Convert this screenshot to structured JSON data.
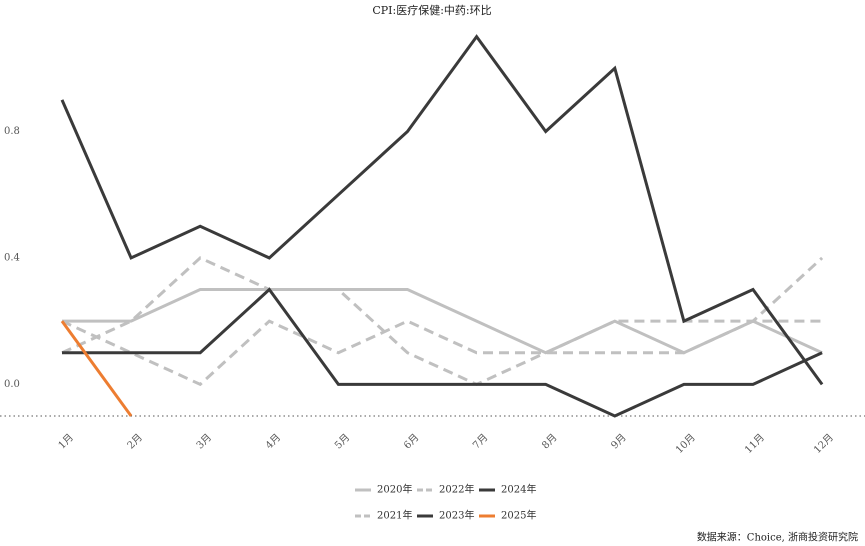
{
  "chart_data": {
    "type": "line",
    "title": "CPI:医疗保健:中药:环比",
    "categories": [
      "1月",
      "2月",
      "3月",
      "4月",
      "5月",
      "6月",
      "7月",
      "8月",
      "9月",
      "10月",
      "11月",
      "12月"
    ],
    "series": [
      {
        "name": "2020年",
        "color": "#c0c0c0",
        "dashed": false,
        "values": [
          0.2,
          0.2,
          0.3,
          0.3,
          0.3,
          0.3,
          0.2,
          0.1,
          0.2,
          0.1,
          0.2,
          0.1
        ]
      },
      {
        "name": "2021年",
        "color": "#c0c0c0",
        "dashed": true,
        "values": [
          0.2,
          0.1,
          0.0,
          0.2,
          0.1,
          0.2,
          0.1,
          0.1,
          0.1,
          0.1,
          0.2,
          0.4
        ]
      },
      {
        "name": "2022年",
        "color": "#c0c0c0",
        "dashed": true,
        "values": [
          0.1,
          0.2,
          0.4,
          0.3,
          0.3,
          0.1,
          0.0,
          0.1,
          0.2,
          0.2,
          0.2,
          0.2
        ]
      },
      {
        "name": "2023年",
        "color": "#3a3a3a",
        "dashed": false,
        "values": [
          0.1,
          0.1,
          0.1,
          0.3,
          0.0,
          0.0,
          0.0,
          0.0,
          -0.1,
          0.0,
          0.0,
          0.1
        ]
      },
      {
        "name": "2024年",
        "color": "#3a3a3a",
        "dashed": false,
        "values": [
          0.9,
          0.4,
          0.5,
          0.4,
          0.6,
          0.8,
          1.1,
          0.8,
          1.0,
          0.2,
          0.3,
          0.0
        ]
      },
      {
        "name": "2025年",
        "color": "#ed7d31",
        "dashed": false,
        "values": [
          0.2,
          -0.1,
          null,
          null,
          null,
          null,
          null,
          null,
          null,
          null,
          null,
          null
        ]
      }
    ],
    "ylim": [
      -0.1,
      1.2
    ],
    "yticks": [
      {
        "value": 0,
        "label": "0.0"
      },
      0.4,
      0.8
    ],
    "source": "数据来源：Choice, 浙商投资研究院"
  }
}
